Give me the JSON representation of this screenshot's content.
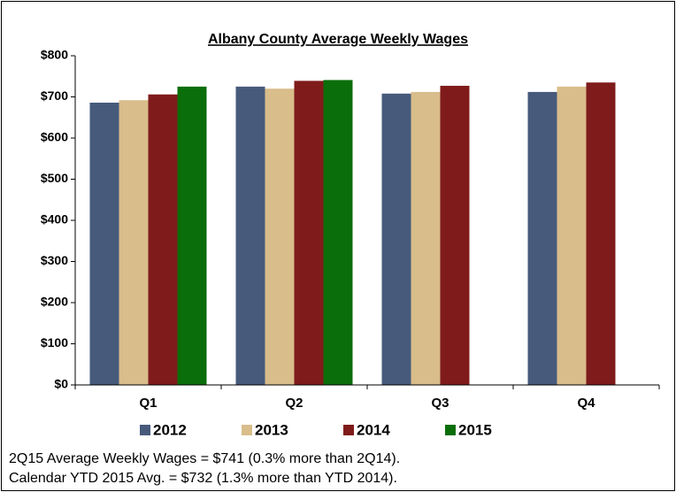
{
  "chart_data": {
    "type": "bar",
    "title": "Albany County Average Weekly Wages",
    "categories": [
      "Q1",
      "Q2",
      "Q3",
      "Q4"
    ],
    "series": [
      {
        "name": "2012",
        "color": "#475a7c",
        "values": [
          686,
          725,
          708,
          712
        ]
      },
      {
        "name": "2013",
        "color": "#d9bd8b",
        "values": [
          692,
          720,
          712,
          725
        ]
      },
      {
        "name": "2014",
        "color": "#7f1b1b",
        "values": [
          706,
          739,
          727,
          735
        ]
      },
      {
        "name": "2015",
        "color": "#0a6e0a",
        "values": [
          725,
          741,
          null,
          null
        ]
      }
    ],
    "ylim": [
      0,
      800
    ],
    "yticks": [
      {
        "value": 0,
        "label": "$0"
      },
      {
        "value": 100,
        "label": "$100"
      },
      {
        "value": 200,
        "label": "$200"
      },
      {
        "value": 300,
        "label": "$300"
      },
      {
        "value": 400,
        "label": "$400"
      },
      {
        "value": 500,
        "label": "$500"
      },
      {
        "value": 600,
        "label": "$600"
      },
      {
        "value": 700,
        "label": "$700"
      },
      {
        "value": 800,
        "label": "$800"
      }
    ],
    "grid": false,
    "legend": "bottom",
    "notes": [
      "2Q15 Average Weekly Wages = $741 (0.3% more than 2Q14).",
      "Calendar YTD 2015 Avg. = $732 (1.3% more than YTD 2014)."
    ]
  }
}
